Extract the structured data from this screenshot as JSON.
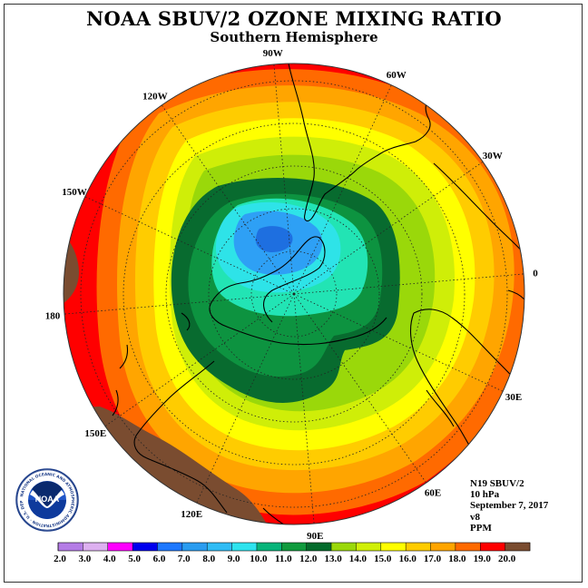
{
  "title": "NOAA SBUV/2 OZONE MIXING RATIO",
  "subtitle": "Southern Hemisphere",
  "longitudes": [
    {
      "label": "90W",
      "deg": 90
    },
    {
      "label": "60W",
      "deg": 60
    },
    {
      "label": "30W",
      "deg": 30
    },
    {
      "label": "0",
      "deg": 0
    },
    {
      "label": "30E",
      "deg": -30
    },
    {
      "label": "60E",
      "deg": -60
    },
    {
      "label": "90E",
      "deg": -90
    },
    {
      "label": "120E",
      "deg": -120
    },
    {
      "label": "150E",
      "deg": -150
    },
    {
      "label": "180",
      "deg": 180
    },
    {
      "label": "150W",
      "deg": 150
    },
    {
      "label": "120W",
      "deg": 120
    }
  ],
  "info": {
    "satellite": "N19 SBUV/2",
    "level": "10 hPa",
    "date": "September 7, 2017",
    "version": "v8",
    "units": "PPM"
  },
  "logo": {
    "text": "NOAA",
    "ring_text": "NATIONAL OCEANIC AND ATMOSPHERIC ADMINISTRATION · U.S. DEPARTMENT OF COMMERCE"
  },
  "colorbar": {
    "labels": [
      "2.0",
      "3.0",
      "4.0",
      "5.0",
      "6.0",
      "7.0",
      "8.0",
      "9.0",
      "10.0",
      "11.0",
      "12.0",
      "13.0",
      "14.0",
      "15.0",
      "16.0",
      "17.0",
      "18.0",
      "19.0",
      "20.0"
    ],
    "colors": [
      "#b47ce6",
      "#ddb0f0",
      "#ff00ff",
      "#0000ee",
      "#1e78ff",
      "#2a9cf0",
      "#30bcf5",
      "#2ee3ee",
      "#08b47a",
      "#119b3e",
      "#046b2c",
      "#9ad80a",
      "#d0ef08",
      "#ffff00",
      "#ffcc00",
      "#ffa500",
      "#ff6a00",
      "#ff0000",
      "#7a4c30"
    ]
  },
  "field_colors": {
    "blue_core": "#1e6fe0",
    "blue": "#2ea0f5",
    "cyan": "#2ee3e8",
    "mint": "#22e4b4",
    "dark_green": "#086b2f",
    "green": "#0d9340",
    "light_green": "#9ad80a",
    "yellow_green": "#cfee08",
    "yellow": "#ffff00",
    "gold": "#ffcc00",
    "orange": "#ffa500",
    "dark_orange": "#ff6a00",
    "red": "#ff0000",
    "brown": "#7a4c30"
  }
}
